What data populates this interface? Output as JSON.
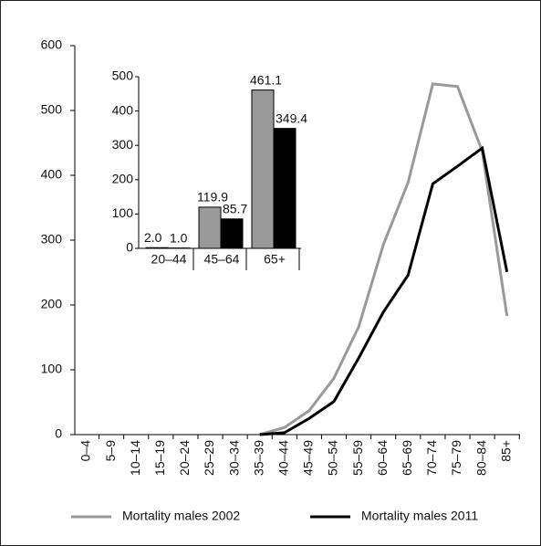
{
  "chart_data": [
    {
      "type": "line",
      "categories": [
        "0–4",
        "5–9",
        "10–14",
        "15–19",
        "20–24",
        "25–29",
        "30–34",
        "35–39",
        "40–44",
        "45–49",
        "50–54",
        "55–59",
        "60–64",
        "65–69",
        "70–74",
        "75–79",
        "80–84",
        "85+"
      ],
      "series": [
        {
          "name": "Mortality males 2002",
          "color": "#999999",
          "values": [
            null,
            null,
            null,
            null,
            null,
            null,
            null,
            0,
            11,
            37,
            87,
            166,
            293,
            389,
            541,
            537,
            437,
            183
          ]
        },
        {
          "name": "Mortality males 2011",
          "color": "#000000",
          "values": [
            null,
            null,
            null,
            null,
            null,
            null,
            null,
            0,
            3,
            25,
            51,
            118,
            189,
            246,
            387,
            414,
            442,
            251
          ]
        }
      ],
      "ylim": [
        0,
        600
      ],
      "yticks": [
        0,
        100,
        200,
        300,
        400,
        500,
        600
      ],
      "legend": "bottom"
    },
    {
      "type": "bar",
      "categories": [
        "20–44",
        "45–64",
        "65+"
      ],
      "series": [
        {
          "color": "#999999",
          "values": [
            2,
            119.9,
            461.1
          ],
          "value_labels": [
            "2.0",
            "119.9",
            "461.1"
          ]
        },
        {
          "color": "#000000",
          "values": [
            1,
            85.7,
            349.4
          ],
          "value_labels": [
            "1.0",
            "85.7",
            "349.4"
          ]
        }
      ],
      "ylim": [
        0,
        500
      ],
      "yticks": [
        0,
        100,
        200,
        300,
        400,
        500
      ]
    }
  ]
}
